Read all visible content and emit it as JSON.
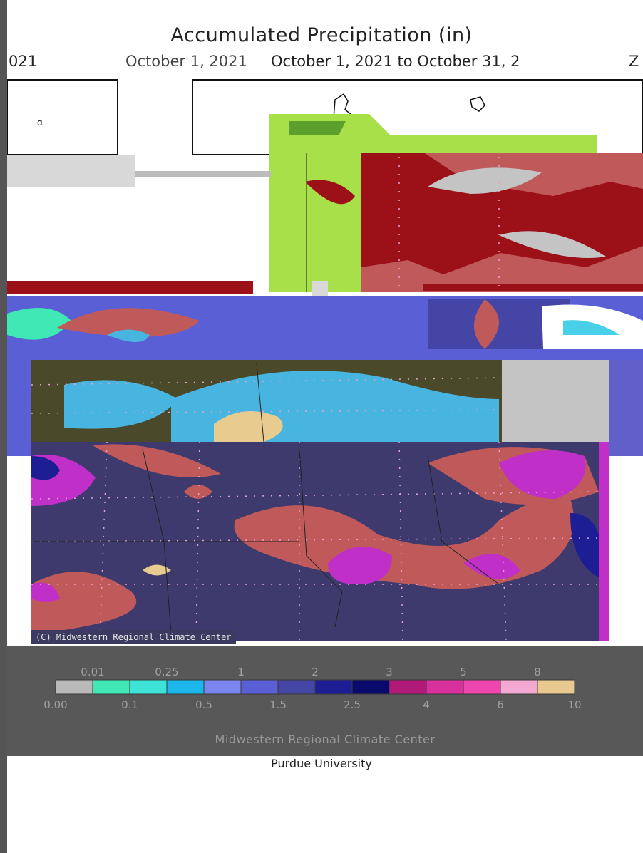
{
  "title": "Accumulated Precipitation (in)",
  "subtitle_fragments": {
    "left_clip": "021",
    "middle": "October 1, 2021",
    "overlay": "October 1, 2021 to October 31, 2",
    "right_clip": "Z"
  },
  "watermark": "(C) Midwestern Regional Climate Center",
  "legend": {
    "swatch_colors": [
      "#b9b9b9",
      "#3fe8b4",
      "#3ee3d8",
      "#1bb6ea",
      "#7a85ee",
      "#5a5fd6",
      "#4545a6",
      "#1d1d94",
      "#0a0a6c",
      "#b01a79",
      "#d8309c",
      "#ef46ae",
      "#f4a9d3",
      "#e8c98f"
    ],
    "top_labels": [
      "0.01",
      "0.25",
      "1",
      "2",
      "3",
      "5",
      "8"
    ],
    "bottom_labels": [
      "0.00",
      "0.1",
      "0.5",
      "1.5",
      "2.5",
      "4",
      "6",
      "10"
    ]
  },
  "credits": {
    "organization": "Midwestern Regional Climate Center",
    "university": "Purdue University"
  },
  "palette": {
    "frame": "#555555",
    "panel": "#585858",
    "lake": "#c4c4c4",
    "green_light": "#a8e04a",
    "red_dark": "#9c1018",
    "red_mid": "#c05a5a",
    "olive": "#4a4a2a",
    "sky": "#48b4e0",
    "sand": "#e8cb8e",
    "navy_purple": "#3e3a6e",
    "magenta": "#c030c8",
    "blue_purple": "#6060c8"
  }
}
